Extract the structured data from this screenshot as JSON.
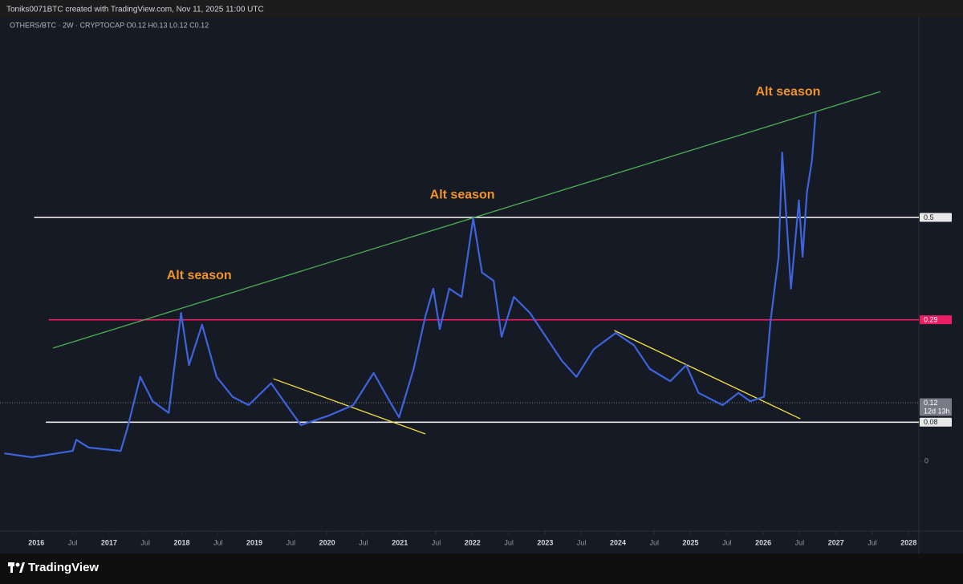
{
  "header": {
    "attribution": "Toniks0071BTC created with TradingView.com, Nov 11, 2025 11:00 UTC",
    "brand": "TradingView"
  },
  "chart_data": {
    "type": "line",
    "symbol_info": "OTHERS/BTC · 2W · CRYPTOCAP  O0.12  H0.13  L0.12  C0.12",
    "color": "#3d63dd",
    "x": [
      2015.56,
      2015.94,
      2016.5,
      2016.55,
      2016.72,
      2017.16,
      2017.25,
      2017.43,
      2017.6,
      2017.82,
      2017.99,
      2018.1,
      2018.28,
      2018.48,
      2018.7,
      2018.92,
      2019.23,
      2019.48,
      2019.64,
      2020.03,
      2020.36,
      2020.64,
      2020.86,
      2020.99,
      2021.19,
      2021.35,
      2021.46,
      2021.55,
      2021.68,
      2021.85,
      2022.01,
      2022.13,
      2022.29,
      2022.4,
      2022.57,
      2022.79,
      2023.01,
      2023.23,
      2023.43,
      2023.67,
      2023.97,
      2024.22,
      2024.44,
      2024.72,
      2024.94,
      2025.11,
      2025.44,
      2025.66,
      2025.82,
      2026.01,
      2026.1,
      2026.21,
      2026.26,
      2026.38,
      2026.49,
      2026.54,
      2026.6,
      2026.67,
      2026.72
    ],
    "values": [
      0.016,
      0.008,
      0.021,
      0.044,
      0.028,
      0.021,
      0.066,
      0.173,
      0.123,
      0.099,
      0.304,
      0.197,
      0.28,
      0.173,
      0.132,
      0.115,
      0.16,
      0.107,
      0.074,
      0.094,
      0.115,
      0.181,
      0.123,
      0.09,
      0.189,
      0.296,
      0.354,
      0.271,
      0.354,
      0.337,
      0.498,
      0.387,
      0.37,
      0.255,
      0.337,
      0.304,
      0.255,
      0.206,
      0.173,
      0.23,
      0.263,
      0.238,
      0.189,
      0.164,
      0.197,
      0.14,
      0.115,
      0.14,
      0.123,
      0.132,
      0.288,
      0.419,
      0.633,
      0.354,
      0.535,
      0.419,
      0.551,
      0.617,
      0.715
    ],
    "xlim": [
      2015.5,
      2028.14
    ],
    "ylim": [
      -0.14,
      0.913
    ],
    "yticks": [
      0
    ],
    "xticks": [
      2016,
      {
        "value": 2016.5,
        "label": "Jul"
      },
      2017,
      {
        "value": 2017.5,
        "label": "Jul"
      },
      2018,
      {
        "value": 2018.5,
        "label": "Jul"
      },
      2019,
      {
        "value": 2019.5,
        "label": "Jul"
      },
      2020,
      {
        "value": 2020.5,
        "label": "Jul"
      },
      2021,
      {
        "value": 2021.5,
        "label": "Jul"
      },
      2022,
      {
        "value": 2022.5,
        "label": "Jul"
      },
      2023,
      {
        "value": 2023.5,
        "label": "Jul"
      },
      2024,
      {
        "value": 2024.5,
        "label": "Jul"
      },
      2025,
      {
        "value": 2025.5,
        "label": "Jul"
      },
      2026,
      {
        "value": 2026.5,
        "label": "Jul"
      },
      2027,
      {
        "value": 2027.5,
        "label": "Jul"
      },
      2028
    ],
    "levels": [
      {
        "value": 0.5,
        "start": 2015.97,
        "color": "#e8e8e8"
      },
      {
        "value": 0.29,
        "start": 2016.17,
        "color": "#e91e63"
      },
      {
        "value": 0.12,
        "color": "#787b86",
        "dotted": true,
        "countdown": "12d 13h"
      },
      {
        "value": 0.08,
        "start": 2016.13,
        "color": "#e8e8e8"
      }
    ],
    "trendlines": [
      {
        "x": [
          2016.23,
          2027.61
        ],
        "values": [
          0.232,
          0.758
        ],
        "color": "#4caf50"
      },
      {
        "x": [
          2019.26,
          2021.35
        ],
        "values": [
          0.169,
          0.056
        ],
        "color": "#f5e042"
      },
      {
        "x": [
          2023.95,
          2026.51
        ],
        "values": [
          0.268,
          0.087
        ],
        "color": "#f5e042"
      }
    ],
    "annotations": [
      {
        "text": "Alt season",
        "x": 2018.24,
        "y": 0.38
      },
      {
        "text": "Alt season",
        "x": 2021.86,
        "y": 0.546
      },
      {
        "text": "Alt season",
        "x": 2026.34,
        "y": 0.757
      }
    ],
    "annotation_color": "#f0932b"
  }
}
